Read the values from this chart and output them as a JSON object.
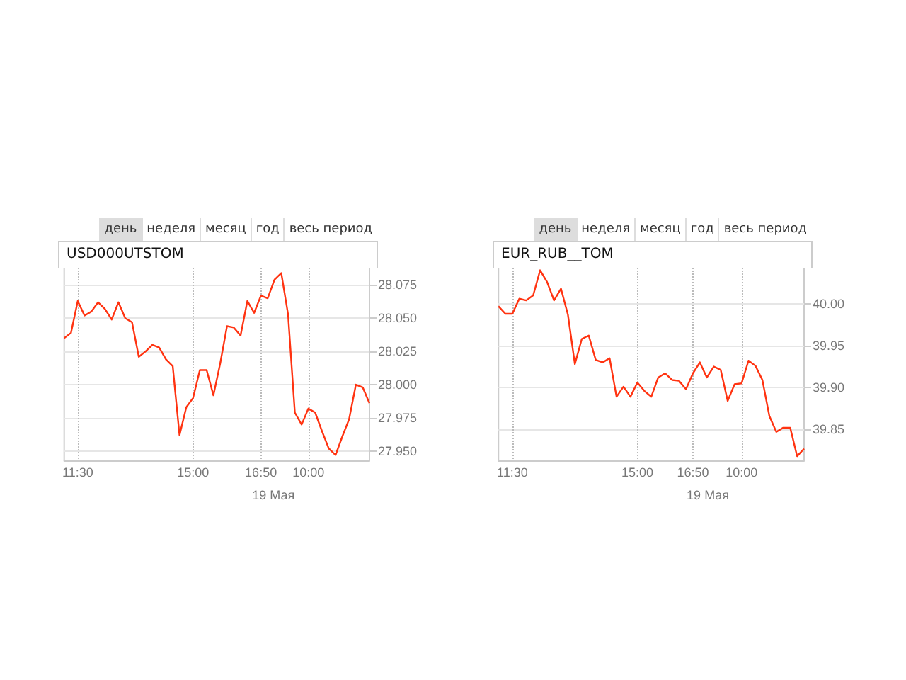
{
  "chart_data": [
    {
      "type": "line",
      "title": "USD000UTSTOM",
      "xlabel": "19 Мая",
      "annotations": [
        "день",
        "неделя",
        "месяц",
        "год",
        "весь период"
      ],
      "categories": [
        null,
        null,
        "11:30",
        null,
        null,
        null,
        null,
        null,
        null,
        null,
        null,
        null,
        null,
        null,
        null,
        null,
        null,
        null,
        null,
        "15:00",
        null,
        null,
        null,
        null,
        null,
        null,
        null,
        null,
        null,
        "16:50",
        null,
        null,
        null,
        null,
        null,
        null,
        "10:00",
        null,
        null,
        null,
        null,
        null,
        null,
        null,
        null,
        null
      ],
      "series": [
        {
          "color": "#ff3311",
          "values": [
            28.035,
            28.039,
            28.063,
            28.052,
            28.055,
            28.062,
            28.057,
            28.049,
            28.062,
            28.05,
            28.047,
            28.021,
            28.025,
            28.03,
            28.028,
            28.019,
            28.014,
            27.962,
            27.983,
            27.99,
            28.011,
            28.011,
            27.992,
            28.016,
            28.044,
            28.043,
            28.037,
            28.063,
            28.054,
            28.067,
            28.065,
            28.079,
            28.084,
            28.053,
            27.979,
            27.97,
            27.982,
            27.979,
            27.965,
            27.952,
            27.947,
            27.961,
            27.974,
            28.0,
            27.998,
            27.986
          ]
        }
      ],
      "ylim": [
        27.943,
        28.088
      ],
      "yticks": [
        {
          "value": 27.95,
          "label": "27.950"
        },
        {
          "value": 27.975,
          "label": "27.975"
        },
        {
          "value": 28.0,
          "label": "28.000"
        },
        {
          "value": 28.025,
          "label": "28.025"
        },
        {
          "value": 28.05,
          "label": "28.050"
        },
        {
          "value": 28.075,
          "label": "28.075"
        }
      ],
      "grid": true,
      "marker": "none",
      "line_style": "solid"
    },
    {
      "type": "line",
      "title": "EUR_RUB__TOM",
      "xlabel": "19 Мая",
      "annotations": [
        "день",
        "неделя",
        "месяц",
        "год",
        "весь период"
      ],
      "categories": [
        null,
        null,
        "11:30",
        null,
        null,
        null,
        null,
        null,
        null,
        null,
        null,
        null,
        null,
        null,
        null,
        null,
        null,
        null,
        null,
        null,
        "15:00",
        null,
        null,
        null,
        null,
        null,
        null,
        null,
        "16:50",
        null,
        null,
        null,
        null,
        null,
        null,
        "10:00",
        null,
        null,
        null,
        null,
        null,
        null,
        null,
        null,
        null
      ],
      "series": [
        {
          "color": "#ff3311",
          "values": [
            39.997,
            39.988,
            39.988,
            40.006,
            40.004,
            40.01,
            40.04,
            40.026,
            40.004,
            40.018,
            39.987,
            39.928,
            39.958,
            39.962,
            39.933,
            39.93,
            39.935,
            39.889,
            39.901,
            39.889,
            39.906,
            39.896,
            39.889,
            39.912,
            39.917,
            39.909,
            39.908,
            39.898,
            39.917,
            39.93,
            39.912,
            39.925,
            39.921,
            39.884,
            39.904,
            39.905,
            39.932,
            39.926,
            39.909,
            39.866,
            39.847,
            39.852,
            39.852,
            39.818,
            39.827
          ]
        }
      ],
      "ylim": [
        39.813,
        40.043
      ],
      "yticks": [
        {
          "value": 39.85,
          "label": "39.85"
        },
        {
          "value": 39.9,
          "label": "39.90"
        },
        {
          "value": 39.95,
          "label": "39.95"
        },
        {
          "value": 40.0,
          "label": "40.00"
        }
      ],
      "grid": true,
      "marker": "none",
      "line_style": "solid"
    }
  ]
}
